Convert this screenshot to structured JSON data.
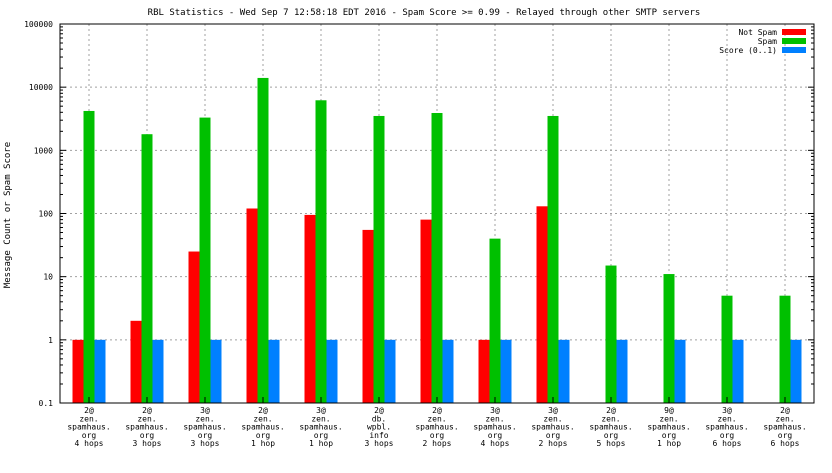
{
  "chart_data": {
    "type": "bar",
    "title": "RBL Statistics - Wed Sep  7 12:58:18 EDT 2016 - Spam Score >= 0.99 - Relayed through other SMTP servers",
    "ylabel": "Message Count or Spam Score",
    "xlabel": "",
    "yscale": "log",
    "ylim": [
      0.1,
      100000
    ],
    "yticks": [
      "0.1",
      "1",
      "10",
      "100",
      "1000",
      "10000",
      "100000"
    ],
    "grid": true,
    "legend_position": "top-right",
    "categories": [
      [
        "2@",
        "zen.",
        "spamhaus.",
        "org",
        "4 hops"
      ],
      [
        "2@",
        "zen.",
        "spamhaus.",
        "org",
        "3 hops"
      ],
      [
        "3@",
        "zen.",
        "spamhaus.",
        "org",
        "3 hops"
      ],
      [
        "2@",
        "zen.",
        "spamhaus.",
        "org",
        "1 hop"
      ],
      [
        "3@",
        "zen.",
        "spamhaus.",
        "org",
        "1 hop"
      ],
      [
        "2@",
        "db.",
        "wpbl.",
        "info",
        "3 hops"
      ],
      [
        "2@",
        "zen.",
        "spamhaus.",
        "org",
        "2 hops"
      ],
      [
        "3@",
        "zen.",
        "spamhaus.",
        "org",
        "4 hops"
      ],
      [
        "3@",
        "zen.",
        "spamhaus.",
        "org",
        "2 hops"
      ],
      [
        "2@",
        "zen.",
        "spamhaus.",
        "org",
        "5 hops"
      ],
      [
        "9@",
        "zen.",
        "spamhaus.",
        "org",
        "1 hop"
      ],
      [
        "3@",
        "zen.",
        "spamhaus.",
        "org",
        "6 hops"
      ],
      [
        "2@",
        "zen.",
        "spamhaus.",
        "org",
        "6 hops"
      ]
    ],
    "series": [
      {
        "name": "Not Spam",
        "color": "#ff0000",
        "values": [
          1,
          2,
          25,
          120,
          95,
          55,
          80,
          1,
          130,
          null,
          null,
          null,
          null
        ]
      },
      {
        "name": "Spam",
        "color": "#00c000",
        "values": [
          4200,
          1800,
          3300,
          14000,
          6200,
          3500,
          3900,
          40,
          3500,
          15,
          11,
          5,
          5
        ]
      },
      {
        "name": "Score (0..1)",
        "color": "#0080ff",
        "values": [
          1,
          1,
          1,
          1,
          1,
          1,
          1,
          1,
          1,
          1,
          1,
          1,
          1
        ]
      }
    ]
  }
}
